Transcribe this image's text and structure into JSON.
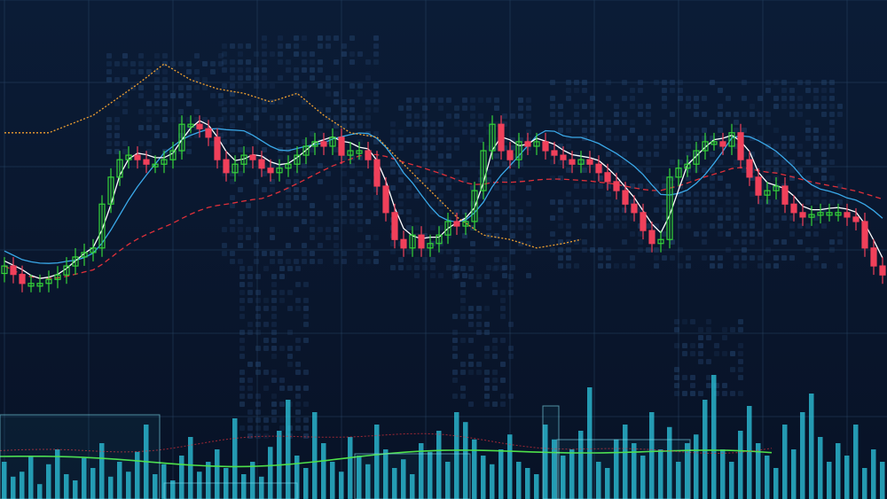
{
  "chart_data": {
    "type": "candlestick",
    "title": "",
    "xlabel": "",
    "ylabel": "",
    "ylim": [
      0,
      100
    ],
    "grid": true,
    "legend": "none",
    "colors": {
      "background": "#0a1630",
      "up": "#35d43a",
      "down": "#f0405a",
      "ma_short": "#ffffff",
      "ma_medium": "#3aa8e8",
      "ma_long": "#e0303a",
      "overlay": "#f0a030",
      "volume": "#2ec8e0",
      "volume_trend": "#4ee04a",
      "grid": "#2a4a6a"
    },
    "closes": [
      46.7,
      45,
      43.2,
      43.2,
      43.2,
      44,
      44.9,
      46.7,
      48.5,
      49.4,
      50.3,
      59.1,
      64.5,
      68.0,
      68.9,
      68.0,
      67.1,
      67.1,
      68.0,
      69.8,
      75.1,
      75.1,
      74.2,
      72.5,
      68.0,
      65.4,
      67.1,
      68.9,
      68.0,
      66.3,
      65.4,
      66.3,
      67.1,
      68.9,
      70.7,
      71.6,
      70.7,
      72.5,
      68.9,
      69.8,
      69.8,
      68.0,
      62.7,
      57.4,
      52.0,
      50.3,
      52.9,
      50.3,
      51.2,
      52.9,
      55.6,
      54.7,
      55.6,
      61.8,
      69.8,
      75.1,
      69.8,
      68.0,
      71.6,
      70.7,
      71.6,
      69.8,
      68.9,
      68.0,
      67.1,
      68.0,
      67.1,
      65.4,
      63.6,
      61.8,
      59.1,
      57.4,
      53.8,
      51.2,
      52.0,
      64.5,
      66.3,
      67.1,
      69.8,
      71.6,
      71.6,
      70.7,
      73.4,
      68.0,
      64.5,
      60.9,
      61.8,
      62.7,
      59.1,
      57.4,
      56.5,
      57.0,
      57.4,
      57.4,
      57.4,
      56.5,
      55.6,
      50.3,
      46.7,
      44.9
    ],
    "overlay_series": {
      "style": "dotted",
      "x": [
        0,
        5,
        10,
        15,
        18,
        21,
        24,
        27,
        30,
        33,
        36,
        39,
        42,
        45,
        48,
        51,
        54,
        57,
        60,
        63,
        65
      ],
      "values": [
        73.4,
        73.4,
        76.9,
        83.1,
        87.2,
        84.0,
        82.2,
        81.3,
        79.6,
        81.3,
        76.9,
        73.4,
        72.5,
        67.1,
        61.8,
        56.5,
        52.9,
        52.0,
        50.3,
        51.2,
        52.0
      ]
    },
    "moving_averages": {
      "short": 3,
      "medium": 8,
      "long": 30
    },
    "volume": [
      30,
      18,
      22,
      35,
      12,
      28,
      40,
      20,
      15,
      33,
      25,
      45,
      18,
      30,
      22,
      38,
      60,
      20,
      28,
      15,
      35,
      50,
      22,
      30,
      40,
      25,
      65,
      20,
      30,
      18,
      42,
      55,
      80,
      35,
      25,
      70,
      45,
      30,
      22,
      50,
      35,
      28,
      60,
      40,
      25,
      32,
      20,
      45,
      38,
      55,
      30,
      70,
      62,
      48,
      35,
      28,
      40,
      52,
      30,
      25,
      20,
      60,
      48,
      35,
      40,
      55,
      90,
      30,
      25,
      48,
      60,
      45,
      35,
      70,
      40,
      58,
      30,
      45,
      52,
      80,
      100,
      40,
      30,
      55,
      75,
      45,
      35,
      25,
      60,
      40,
      70,
      85,
      50,
      30,
      45,
      35,
      60,
      25,
      40,
      30
    ],
    "volume_ylim": [
      0,
      100
    ]
  }
}
